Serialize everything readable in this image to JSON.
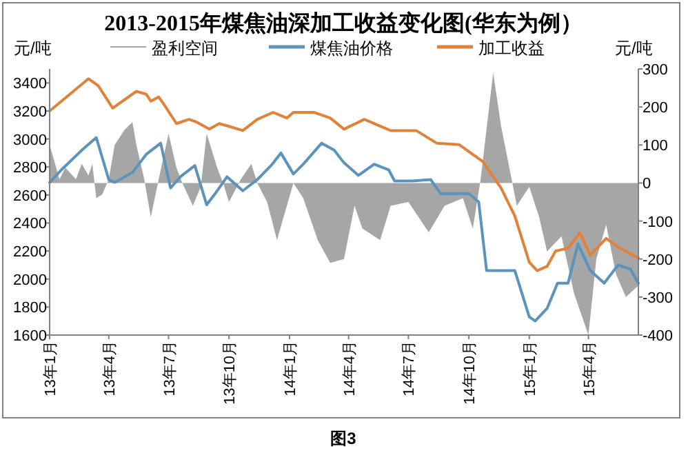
{
  "chart_data": {
    "type": "line",
    "title": "2013-2015年煤焦油深加工收益变化图(华东为例）",
    "ylabel": "元/吨",
    "y2label": "元/吨",
    "legend": "top",
    "grid": false,
    "marker": "none",
    "annotations": [
      "图3"
    ],
    "xlim": [
      "2013-01-01",
      "2015-06-16"
    ],
    "xticks": [
      {
        "value": "2013-01-01",
        "label": "13年1月"
      },
      {
        "value": "2013-04-01",
        "label": "13年4月"
      },
      {
        "value": "2013-07-01",
        "label": "13年7月"
      },
      {
        "value": "2013-10-01",
        "label": "13年10月"
      },
      {
        "value": "2014-01-01",
        "label": "14年1月"
      },
      {
        "value": "2014-04-01",
        "label": "14年4月"
      },
      {
        "value": "2014-07-01",
        "label": "14年7月"
      },
      {
        "value": "2014-10-01",
        "label": "14年10月"
      },
      {
        "value": "2015-01-01",
        "label": "15年1月"
      },
      {
        "value": "2015-04-01",
        "label": "15年4月"
      }
    ],
    "ylim": [
      1600,
      3500
    ],
    "yticks": [
      1600,
      1800,
      2000,
      2200,
      2400,
      2600,
      2800,
      3000,
      3200,
      3400
    ],
    "y2lim": [
      -400,
      300
    ],
    "y2ticks": [
      -400,
      -300,
      -200,
      -100,
      0,
      100,
      200,
      300
    ],
    "series": [
      {
        "name": "盈利空间",
        "type": "area",
        "axis": "y2",
        "color": "#a6a6a6",
        "x": [
          "2013-01-01",
          "2013-01-06",
          "2013-01-16",
          "2013-01-25",
          "2013-02-10",
          "2013-02-19",
          "2013-03-01",
          "2013-03-07",
          "2013-03-13",
          "2013-03-22",
          "2013-04-01",
          "2013-04-10",
          "2013-04-25",
          "2013-05-07",
          "2013-05-13",
          "2013-05-25",
          "2013-06-04",
          "2013-06-16",
          "2013-07-01",
          "2013-07-13",
          "2013-07-22",
          "2013-08-07",
          "2013-08-19",
          "2013-08-28",
          "2013-09-13",
          "2013-09-22",
          "2013-10-01",
          "2013-10-19",
          "2013-11-04",
          "2013-11-13",
          "2013-11-28",
          "2013-12-13",
          "2013-12-28",
          "2014-01-07",
          "2014-01-22",
          "2014-02-13",
          "2014-03-04",
          "2014-03-25",
          "2014-04-10",
          "2014-04-22",
          "2014-05-19",
          "2014-06-04",
          "2014-07-01",
          "2014-08-01",
          "2014-08-25",
          "2014-09-22",
          "2014-10-07",
          "2014-10-19",
          "2014-11-07",
          "2014-11-19",
          "2014-12-04",
          "2014-12-13",
          "2015-01-01",
          "2015-01-16",
          "2015-01-28",
          "2015-02-19",
          "2015-03-10",
          "2015-04-01",
          "2015-04-13",
          "2015-04-28",
          "2015-05-13",
          "2015-05-28",
          "2015-06-16"
        ],
        "values": [
          100,
          70,
          10,
          40,
          10,
          50,
          20,
          50,
          -40,
          -30,
          10,
          100,
          140,
          160,
          100,
          10,
          -90,
          10,
          130,
          40,
          0,
          -60,
          -10,
          130,
          40,
          0,
          -50,
          10,
          50,
          0,
          -50,
          -150,
          -60,
          0,
          -40,
          -150,
          -210,
          -200,
          -60,
          -120,
          -150,
          -60,
          -50,
          -130,
          -60,
          -40,
          -120,
          10,
          290,
          150,
          20,
          -60,
          -10,
          -90,
          -180,
          -140,
          -290,
          -400,
          -200,
          -110,
          -240,
          -300,
          -270
        ]
      },
      {
        "name": "煤焦油价格",
        "color": "#5b93bd",
        "x": [
          "2013-01-01",
          "2013-01-19",
          "2013-02-19",
          "2013-03-13",
          "2013-04-01",
          "2013-04-10",
          "2013-05-07",
          "2013-05-28",
          "2013-06-19",
          "2013-07-04",
          "2013-07-19",
          "2013-08-10",
          "2013-08-28",
          "2013-09-10",
          "2013-09-28",
          "2013-10-22",
          "2013-11-13",
          "2013-12-04",
          "2013-12-19",
          "2014-01-07",
          "2014-01-22",
          "2014-02-19",
          "2014-03-10",
          "2014-03-25",
          "2014-04-16",
          "2014-05-10",
          "2014-06-01",
          "2014-06-10",
          "2014-07-07",
          "2014-08-04",
          "2014-08-19",
          "2014-10-01",
          "2014-10-16",
          "2014-10-28",
          "2014-12-10",
          "2015-01-01",
          "2015-01-10",
          "2015-01-28",
          "2015-02-13",
          "2015-03-01",
          "2015-03-16",
          "2015-04-04",
          "2015-04-25",
          "2015-05-16",
          "2015-06-04",
          "2015-06-16"
        ],
        "values": [
          2690,
          2780,
          2920,
          3010,
          2710,
          2690,
          2760,
          2890,
          2970,
          2650,
          2730,
          2810,
          2530,
          2610,
          2730,
          2630,
          2710,
          2810,
          2900,
          2750,
          2820,
          2970,
          2920,
          2830,
          2740,
          2820,
          2780,
          2700,
          2700,
          2710,
          2610,
          2610,
          2550,
          2060,
          2060,
          1730,
          1700,
          1790,
          1970,
          1970,
          2250,
          2060,
          1970,
          2100,
          2070,
          1970
        ]
      },
      {
        "name": "加工收益",
        "color": "#e0823a",
        "x": [
          "2013-01-01",
          "2013-02-01",
          "2013-03-01",
          "2013-03-16",
          "2013-04-07",
          "2013-04-22",
          "2013-05-13",
          "2013-05-28",
          "2013-06-04",
          "2013-06-16",
          "2013-06-25",
          "2013-07-13",
          "2013-08-01",
          "2013-08-13",
          "2013-09-01",
          "2013-09-16",
          "2013-10-01",
          "2013-10-22",
          "2013-11-13",
          "2013-12-07",
          "2013-12-28",
          "2014-01-07",
          "2014-02-07",
          "2014-03-04",
          "2014-03-25",
          "2014-04-25",
          "2014-06-04",
          "2014-07-13",
          "2014-08-13",
          "2014-09-16",
          "2014-10-22",
          "2014-11-19",
          "2014-12-10",
          "2015-01-01",
          "2015-01-13",
          "2015-01-28",
          "2015-02-10",
          "2015-03-01",
          "2015-03-19",
          "2015-04-04",
          "2015-04-28",
          "2015-05-19",
          "2015-06-16"
        ],
        "values": [
          3200,
          3320,
          3430,
          3380,
          3220,
          3270,
          3340,
          3320,
          3270,
          3300,
          3240,
          3110,
          3140,
          3120,
          3070,
          3110,
          3090,
          3060,
          3140,
          3190,
          3150,
          3190,
          3190,
          3150,
          3070,
          3140,
          3060,
          3060,
          2970,
          2960,
          2840,
          2650,
          2450,
          2120,
          2060,
          2090,
          2200,
          2220,
          2330,
          2170,
          2290,
          2220,
          2150
        ]
      }
    ]
  }
}
